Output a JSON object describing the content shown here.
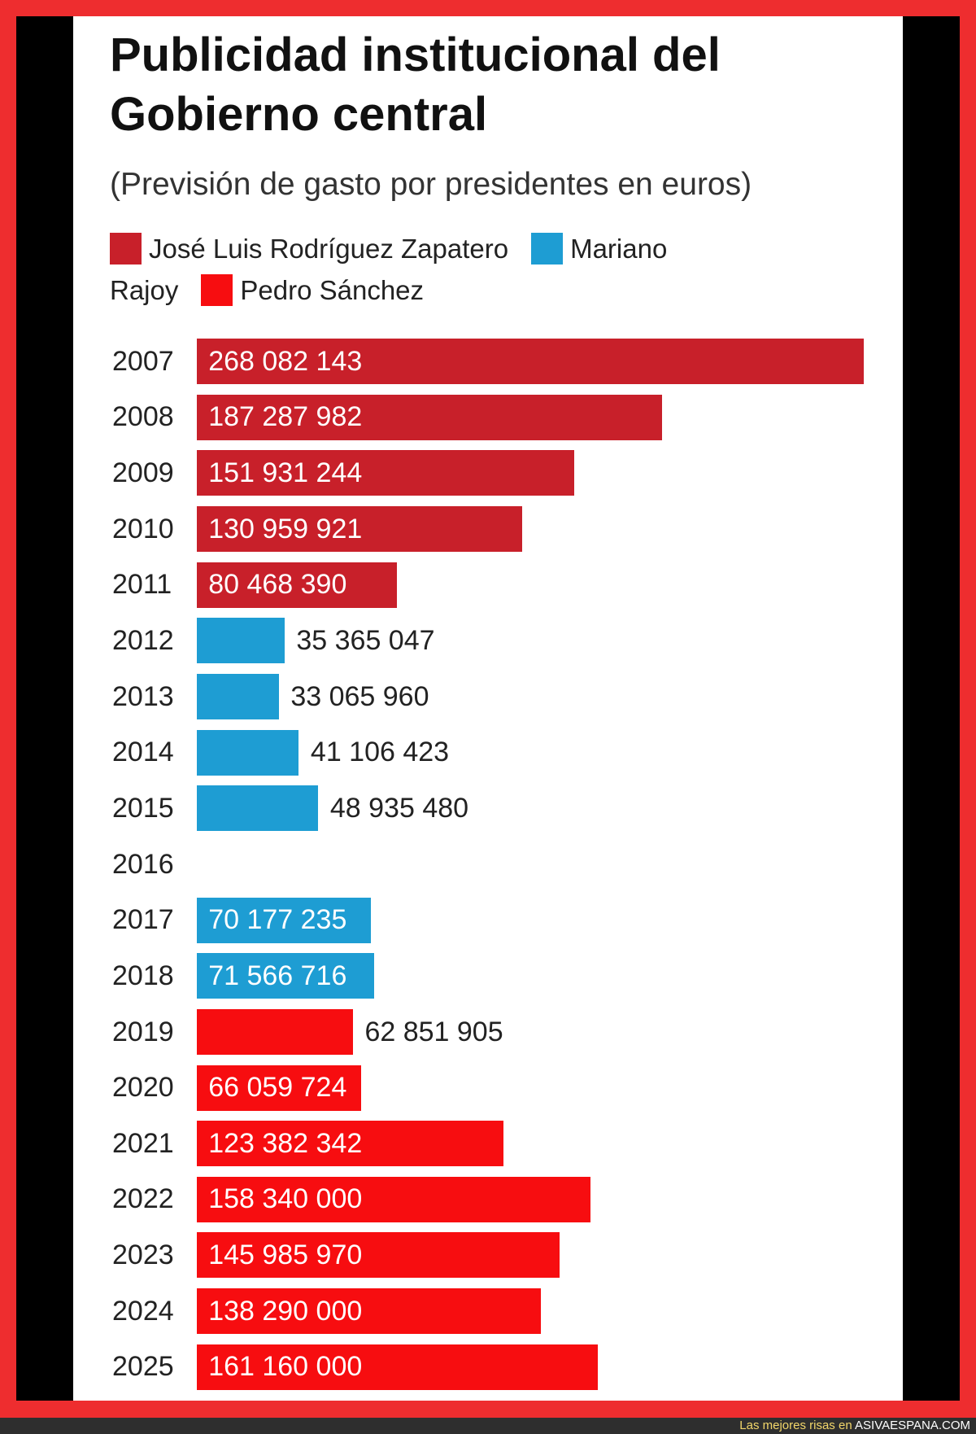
{
  "chart_data": {
    "type": "bar",
    "orientation": "horizontal",
    "title": "Publicidad institucional del Gobierno central",
    "subtitle": "(Previsión de gasto por presidentes en euros)",
    "legend_placement": "top",
    "grid": false,
    "series": [
      {
        "name": "José Luis Rodríguez Zapatero",
        "color": "#c8202a"
      },
      {
        "name": "Mariano Rajoy",
        "color": "#1e9dd3"
      },
      {
        "name": "Pedro Sánchez",
        "color": "#f70d10"
      }
    ],
    "bars": [
      {
        "category": "2007",
        "value": 268082143,
        "label": "268 082 143",
        "series": 0
      },
      {
        "category": "2008",
        "value": 187287982,
        "label": "187 287 982",
        "series": 0
      },
      {
        "category": "2009",
        "value": 151931244,
        "label": "151 931 244",
        "series": 0
      },
      {
        "category": "2010",
        "value": 130959921,
        "label": "130 959 921",
        "series": 0
      },
      {
        "category": "2011",
        "value": 80468390,
        "label": "80 468 390",
        "series": 0
      },
      {
        "category": "2012",
        "value": 35365047,
        "label": "35 365 047",
        "series": 1
      },
      {
        "category": "2013",
        "value": 33065960,
        "label": "33 065 960",
        "series": 1
      },
      {
        "category": "2014",
        "value": 41106423,
        "label": "41 106 423",
        "series": 1
      },
      {
        "category": "2015",
        "value": 48935480,
        "label": "48 935 480",
        "series": 1
      },
      {
        "category": "2016",
        "value": null,
        "series": null
      },
      {
        "category": "2017",
        "value": 70177235,
        "label": "70 177 235",
        "series": 1
      },
      {
        "category": "2018",
        "value": 71566716,
        "label": "71 566 716",
        "series": 1
      },
      {
        "category": "2019",
        "value": 62851905,
        "label": "62 851 905",
        "series": 2
      },
      {
        "category": "2020",
        "value": 66059724,
        "label": "66 059 724",
        "series": 2
      },
      {
        "category": "2021",
        "value": 123382342,
        "label": "123 382 342",
        "series": 2
      },
      {
        "category": "2022",
        "value": 158340000,
        "label": "158 340 000",
        "series": 2
      },
      {
        "category": "2023",
        "value": 145985970,
        "label": "145 985 970",
        "series": 2
      },
      {
        "category": "2024",
        "value": 138290000,
        "label": "138 290 000",
        "series": 2
      },
      {
        "category": "2025",
        "value": 161160000,
        "label": "161 160 000",
        "series": 2
      }
    ]
  },
  "footer": {
    "tagline": "Las mejores risas en",
    "site": "ASIVAESPANA.COM"
  }
}
